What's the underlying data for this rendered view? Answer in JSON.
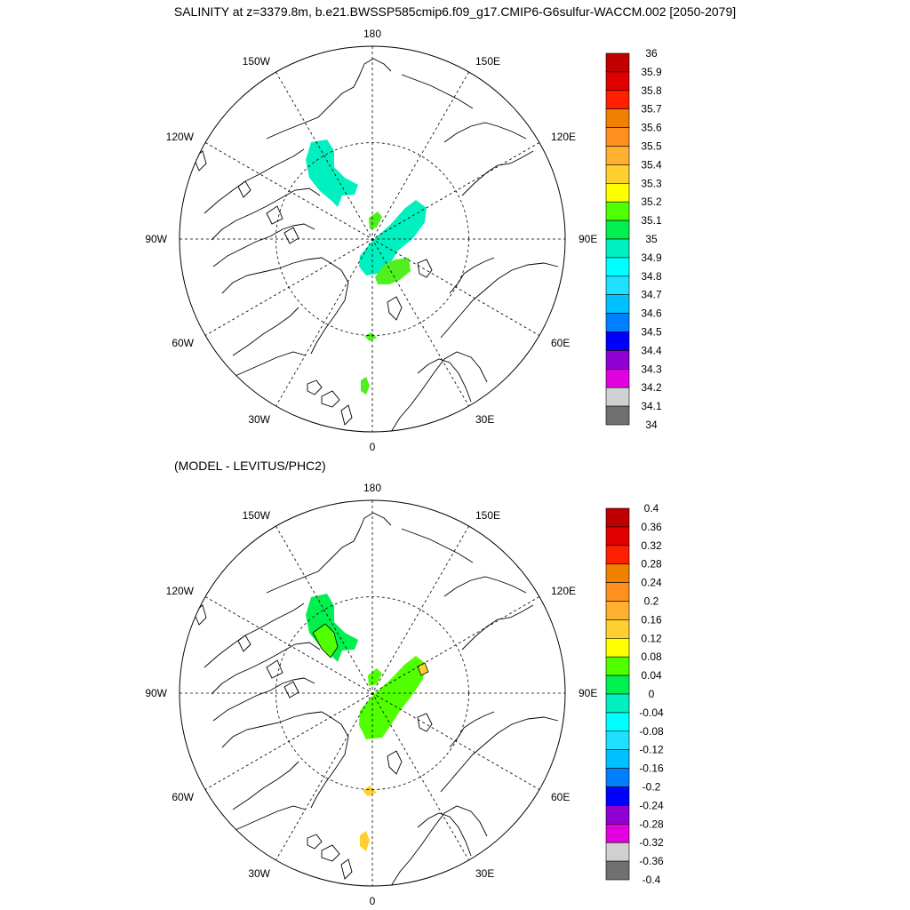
{
  "title": "SALINITY at z=3379.8m, b.e21.BWSSP585cmip6.f09_g17.CMIP6-G6sulfur-WACCM.002 [2050-2079]",
  "subtitle": "(MODEL - LEVITUS/PHC2)",
  "map_labels": {
    "top": "180",
    "bottom": "0",
    "left": "90W",
    "right": "90E",
    "upper_left_30": "150W",
    "upper_left_60": "120W",
    "lower_left_60": "60W",
    "lower_left_30": "30W",
    "upper_right_30": "150E",
    "upper_right_60": "120E",
    "lower_right_60": "60E",
    "lower_right_30": "30E"
  },
  "colorbar_top": {
    "labels": [
      "36",
      "35.9",
      "35.8",
      "35.7",
      "35.6",
      "35.5",
      "35.4",
      "35.3",
      "35.2",
      "35.1",
      "35",
      "34.9",
      "34.8",
      "34.7",
      "34.6",
      "34.5",
      "34.4",
      "34.3",
      "34.2",
      "34.1",
      "34"
    ]
  },
  "colorbar_bottom": {
    "labels": [
      "0.4",
      "0.36",
      "0.32",
      "0.28",
      "0.24",
      "0.2",
      "0.16",
      "0.12",
      "0.08",
      "0.04",
      "0",
      "-0.04",
      "-0.08",
      "-0.12",
      "-0.16",
      "-0.2",
      "-0.24",
      "-0.28",
      "-0.32",
      "-0.36",
      "-0.4"
    ]
  },
  "colors": [
    "#c00000",
    "#e00000",
    "#ff2000",
    "#f08000",
    "#ff9020",
    "#ffb030",
    "#ffd030",
    "#ffff00",
    "#50ff00",
    "#00f050",
    "#00f0c0",
    "#00ffff",
    "#20e0ff",
    "#00c0ff",
    "#0080ff",
    "#0000ff",
    "#9000d0",
    "#e000e0",
    "#d0d0d0",
    "#707070"
  ],
  "fields": {
    "top_cyan": "#00f0c0",
    "top_green": "#50f020",
    "bottom_green": "#50ff00",
    "bottom_green2": "#00f050",
    "bottom_yellow": "#ffd030"
  }
}
